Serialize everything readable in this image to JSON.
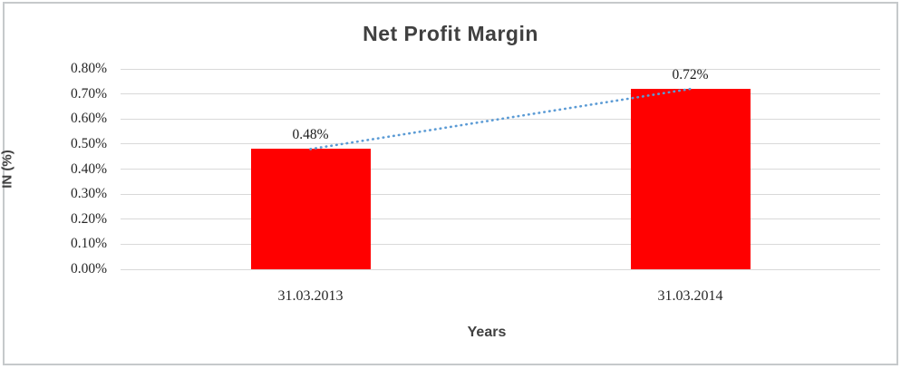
{
  "window": {
    "background_color": "#ffffff",
    "frame_color": "#c6c9cb"
  },
  "chart_data": {
    "type": "bar",
    "title": "Net Profit Margin",
    "xlabel": "Years",
    "ylabel": "IN (%)",
    "categories": [
      "31.03.2013",
      "31.03.2014"
    ],
    "values": [
      0.48,
      0.72
    ],
    "data_labels": [
      "0.48%",
      "0.72%"
    ],
    "y_ticks": [
      "0.00%",
      "0.10%",
      "0.20%",
      "0.30%",
      "0.40%",
      "0.50%",
      "0.60%",
      "0.70%",
      "0.80%"
    ],
    "ylim": [
      0,
      0.8
    ],
    "grid": true,
    "legend": false,
    "bar_color": "#ff0000",
    "gridline_color": "#d9d9d9",
    "title_color": "#404040",
    "axis_title_color": "#404040",
    "tick_label_color": "#262626",
    "trendline": {
      "style": "dotted",
      "color": "#5b9bd5",
      "from_value": 0.48,
      "to_value": 0.72
    }
  }
}
